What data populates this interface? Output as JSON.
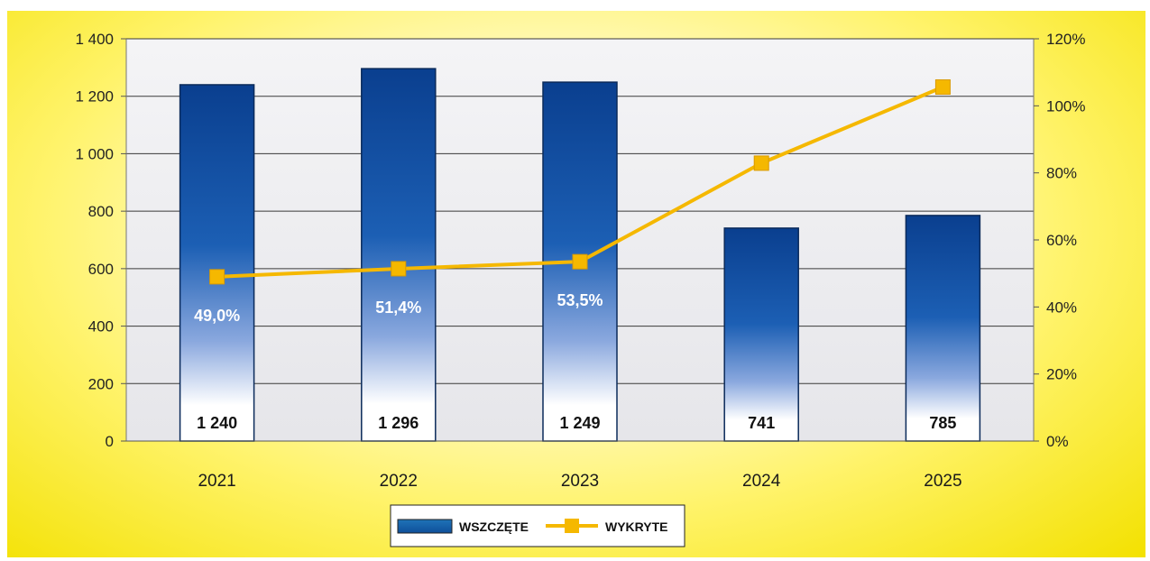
{
  "chart_data": {
    "type": "bar",
    "categories": [
      "2021",
      "2022",
      "2023",
      "2024",
      "2025"
    ],
    "series": [
      {
        "name": "WSZCZĘTE",
        "type": "bar",
        "axis": "left",
        "values": [
          1240,
          1296,
          1249,
          741,
          785
        ],
        "labels": [
          "1 240",
          "1 296",
          "1 249",
          "741",
          "785"
        ]
      },
      {
        "name": "WYKRYTE",
        "type": "line",
        "axis": "right",
        "values": [
          49.0,
          51.4,
          53.5,
          82.9,
          105.6
        ],
        "labels": [
          "49,0%",
          "51,4%",
          "53,5%",
          "",
          ""
        ]
      }
    ],
    "y_left": {
      "ylim": [
        0,
        1400
      ],
      "ticks": [
        0,
        200,
        400,
        600,
        800,
        1000,
        1200,
        1400
      ],
      "tick_labels": [
        "0",
        "200",
        "400",
        "600",
        "800",
        "1 000",
        "1 200",
        "1 400"
      ]
    },
    "y_right": {
      "ylim": [
        0,
        120
      ],
      "ticks": [
        0,
        20,
        40,
        60,
        80,
        100,
        120
      ],
      "tick_labels": [
        "0%",
        "20%",
        "40%",
        "60%",
        "80%",
        "100%",
        "120%"
      ]
    },
    "grid": true,
    "legend_position": "bottom-center",
    "colors": {
      "bar_dark": "#0a3f8f",
      "bar_light": "#ffffff",
      "line": "#f5b800",
      "background": "#fff36a"
    }
  }
}
